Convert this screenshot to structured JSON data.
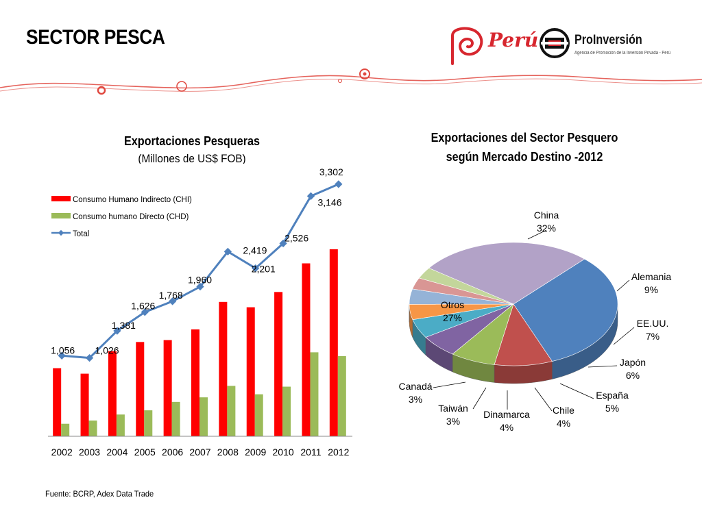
{
  "header": {
    "title": "SECTOR PESCA",
    "logo_peru": "Perú",
    "logo_proinversion": "ProInversión",
    "logo_proinversion_sub": "Agencia de Promoción de la Inversión Privada - Perú"
  },
  "source": "Fuente: BCRP, Adex Data Trade",
  "colors": {
    "chi": "#ff0000",
    "chd": "#9bbb59",
    "total": "#4f81bd",
    "brand": "#d7272f"
  },
  "chart_data": [
    {
      "type": "bar",
      "title": "Exportaciones Pesqueras",
      "subtitle": "(Millones de US$ FOB)",
      "legend_position": "top-left",
      "categories": [
        "2002",
        "2003",
        "2004",
        "2005",
        "2006",
        "2007",
        "2008",
        "2009",
        "2010",
        "2011",
        "2012"
      ],
      "series": [
        {
          "name": "Consumo Humano Indirecto (CHI)",
          "type": "bar",
          "values": [
            892,
            820,
            1115,
            1235,
            1260,
            1400,
            1760,
            1690,
            1890,
            2265,
            2450
          ]
        },
        {
          "name": "Consumo humano Directo (CHD)",
          "type": "bar",
          "values": [
            164,
            206,
            285,
            340,
            450,
            510,
            660,
            550,
            650,
            1100,
            1050
          ]
        },
        {
          "name": "Total",
          "type": "line",
          "values": [
            1056,
            1026,
            1381,
            1626,
            1768,
            1960,
            2419,
            2201,
            2526,
            3146,
            3302
          ],
          "labels": [
            "1,056",
            "1,026",
            "1,381",
            "1,626",
            "1,768",
            "1,960",
            "2,419",
            "2,201",
            "2,526",
            "3,146",
            "3,302"
          ]
        }
      ],
      "grid": false
    },
    {
      "type": "pie",
      "title": "Exportaciones del Sector Pesquero según Mercado Destino -2012",
      "title_lines": [
        "Exportaciones del Sector Pesquero",
        "según Mercado Destino -2012"
      ],
      "slices": [
        {
          "label": "China",
          "value": 32,
          "pct": "32%",
          "color": "#4f81bd"
        },
        {
          "label": "Alemania",
          "value": 9,
          "pct": "9%",
          "color": "#c0504d"
        },
        {
          "label": "EE.UU.",
          "value": 7,
          "pct": "7%",
          "color": "#9bbb59"
        },
        {
          "label": "Japón",
          "value": 6,
          "pct": "6%",
          "color": "#8064a2"
        },
        {
          "label": "España",
          "value": 5,
          "pct": "5%",
          "color": "#4bacc6"
        },
        {
          "label": "Chile",
          "value": 4,
          "pct": "4%",
          "color": "#f79646"
        },
        {
          "label": "Dinamarca",
          "value": 4,
          "pct": "4%",
          "color": "#95b3d7"
        },
        {
          "label": "Taiwán",
          "value": 3,
          "pct": "3%",
          "color": "#d99694"
        },
        {
          "label": "Canadá",
          "value": 3,
          "pct": "3%",
          "color": "#c3d69b"
        },
        {
          "label": "Otros",
          "value": 27,
          "pct": "27%",
          "color": "#b2a2c7"
        }
      ]
    }
  ]
}
